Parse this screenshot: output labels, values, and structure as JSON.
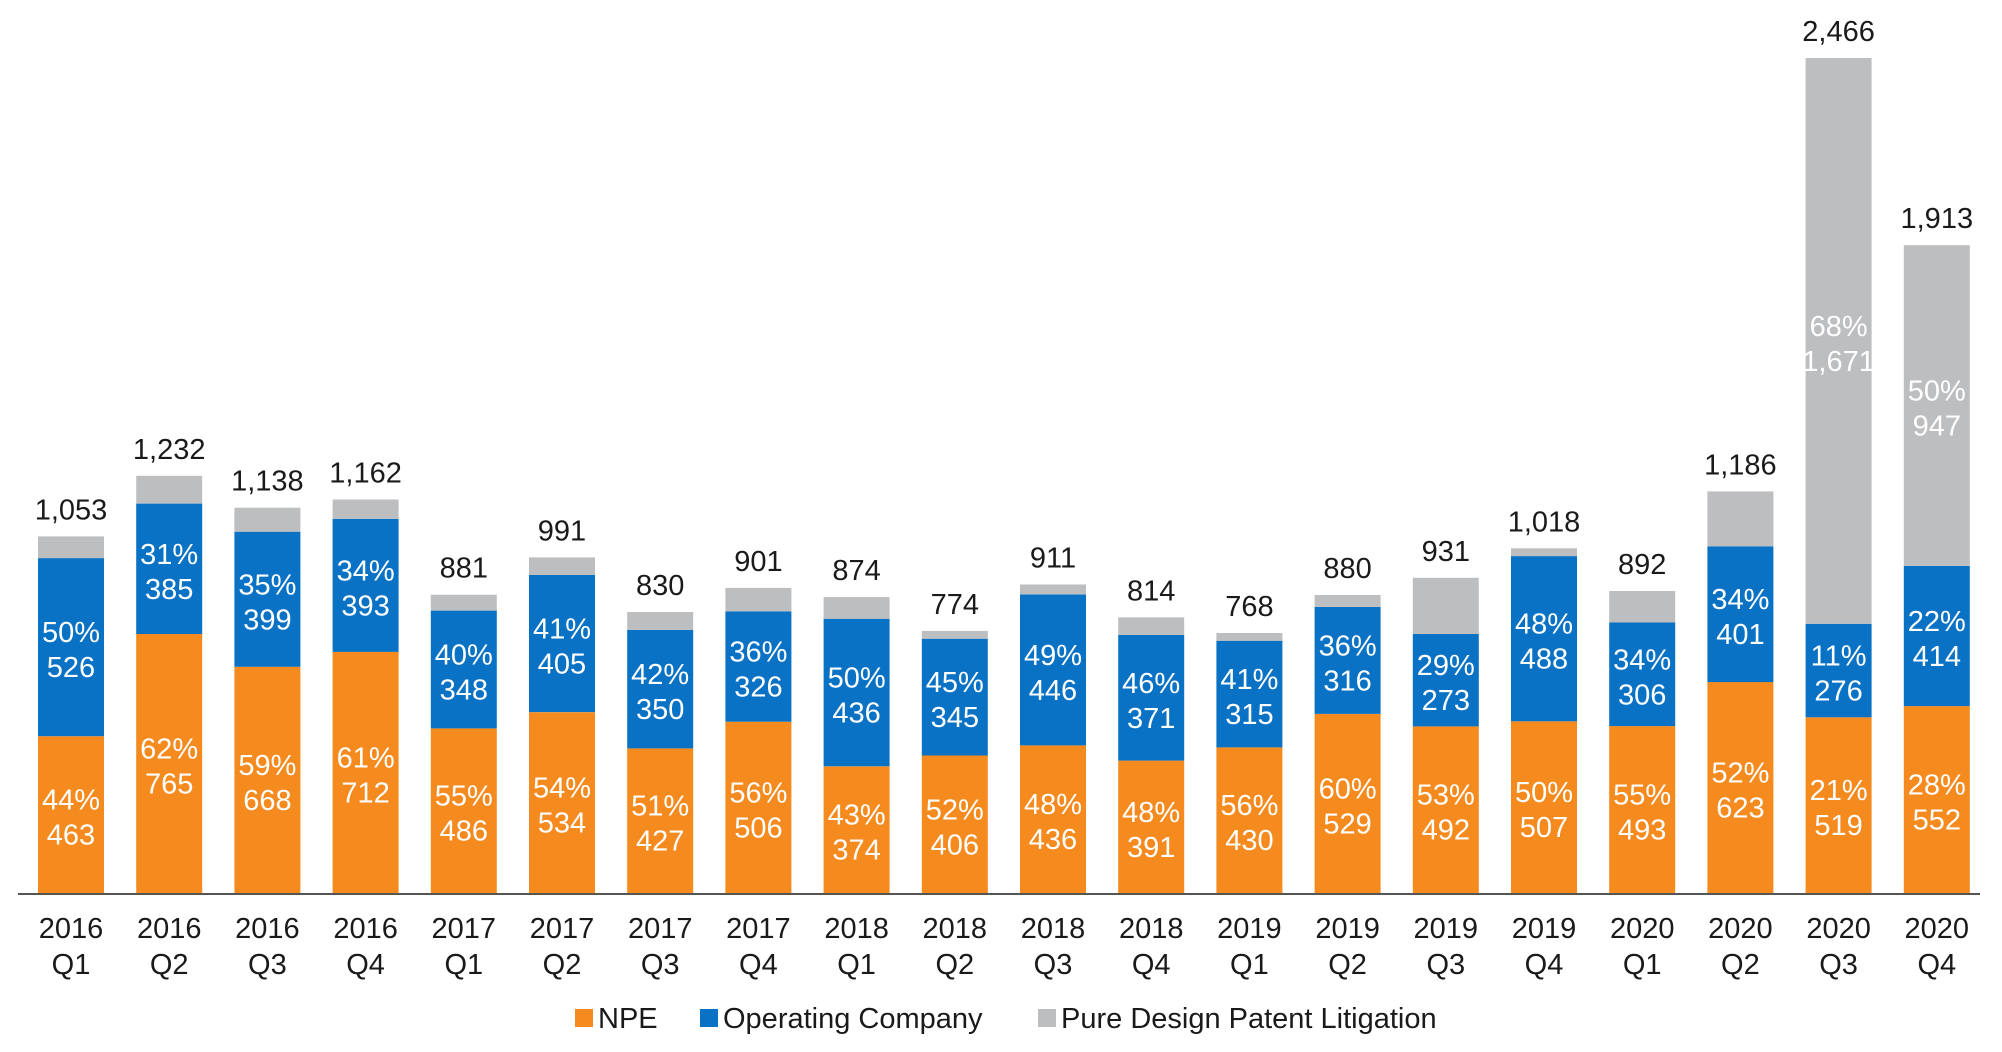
{
  "chart_data": {
    "type": "bar",
    "stacked": true,
    "categories": [
      [
        "2016",
        "Q1"
      ],
      [
        "2016",
        "Q2"
      ],
      [
        "2016",
        "Q3"
      ],
      [
        "2016",
        "Q4"
      ],
      [
        "2017",
        "Q1"
      ],
      [
        "2017",
        "Q2"
      ],
      [
        "2017",
        "Q3"
      ],
      [
        "2017",
        "Q4"
      ],
      [
        "2018",
        "Q1"
      ],
      [
        "2018",
        "Q2"
      ],
      [
        "2018",
        "Q3"
      ],
      [
        "2018",
        "Q4"
      ],
      [
        "2019",
        "Q1"
      ],
      [
        "2019",
        "Q2"
      ],
      [
        "2019",
        "Q3"
      ],
      [
        "2019",
        "Q4"
      ],
      [
        "2020",
        "Q1"
      ],
      [
        "2020",
        "Q2"
      ],
      [
        "2020",
        "Q3"
      ],
      [
        "2020",
        "Q4"
      ]
    ],
    "totals": [
      "1,053",
      "1,232",
      "1,138",
      "1,162",
      "881",
      "991",
      "830",
      "901",
      "874",
      "774",
      "911",
      "814",
      "768",
      "880",
      "931",
      "1,018",
      "892",
      "1,186",
      "2,466",
      "1,913"
    ],
    "total_values": [
      1053,
      1232,
      1138,
      1162,
      881,
      991,
      830,
      901,
      874,
      774,
      911,
      814,
      768,
      880,
      931,
      1018,
      892,
      1186,
      2466,
      1913
    ],
    "series": [
      {
        "name": "NPE",
        "color": "#F58A1F",
        "values": [
          463,
          765,
          668,
          712,
          486,
          534,
          427,
          506,
          374,
          406,
          436,
          391,
          430,
          529,
          492,
          507,
          493,
          623,
          519,
          552
        ],
        "percents": [
          "44%",
          "62%",
          "59%",
          "61%",
          "55%",
          "54%",
          "51%",
          "56%",
          "43%",
          "52%",
          "48%",
          "48%",
          "56%",
          "60%",
          "53%",
          "50%",
          "55%",
          "52%",
          "21%",
          "28%"
        ]
      },
      {
        "name": "Operating Company",
        "color": "#0A72C4",
        "values": [
          526,
          385,
          399,
          393,
          348,
          405,
          350,
          326,
          436,
          345,
          446,
          371,
          315,
          316,
          273,
          488,
          306,
          401,
          276,
          414
        ],
        "percents": [
          "50%",
          "31%",
          "35%",
          "34%",
          "40%",
          "41%",
          "42%",
          "36%",
          "50%",
          "45%",
          "49%",
          "46%",
          "41%",
          "36%",
          "29%",
          "48%",
          "34%",
          "34%",
          "11%",
          "22%"
        ]
      },
      {
        "name": "Pure Design Patent Litigation",
        "color": "#BDBEC0",
        "values": [
          64,
          82,
          71,
          57,
          47,
          52,
          53,
          69,
          64,
          23,
          29,
          52,
          23,
          35,
          166,
          23,
          93,
          162,
          1671,
          947
        ],
        "labels": [
          null,
          null,
          null,
          null,
          null,
          null,
          null,
          null,
          null,
          null,
          null,
          null,
          null,
          null,
          null,
          null,
          null,
          null,
          "1,671",
          "947"
        ],
        "percents": [
          null,
          null,
          null,
          null,
          null,
          null,
          null,
          null,
          null,
          null,
          null,
          null,
          null,
          null,
          null,
          null,
          null,
          null,
          "68%",
          "50%"
        ]
      }
    ],
    "legend": {
      "position": "bottom"
    },
    "grid": false,
    "ylim": [
      0,
      2466
    ]
  }
}
